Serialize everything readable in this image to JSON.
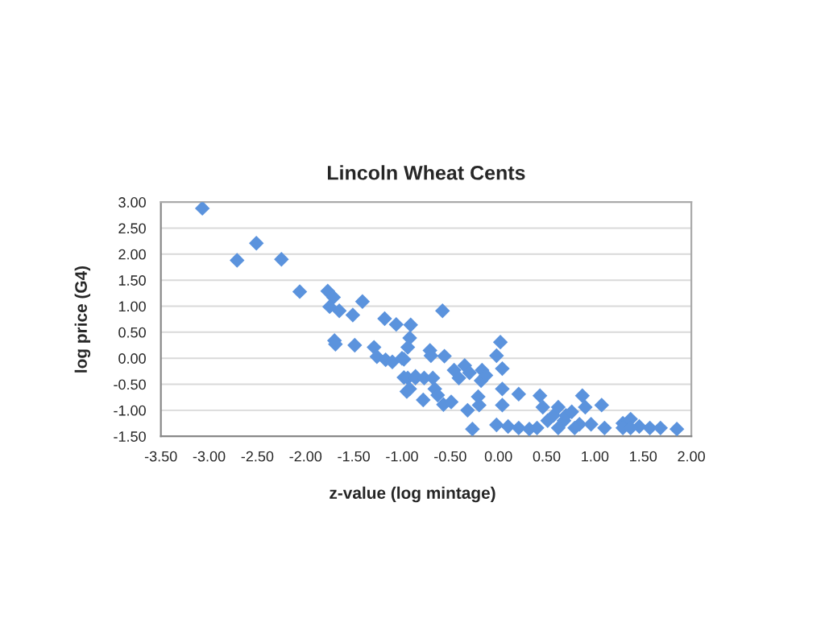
{
  "chart_data": {
    "type": "scatter",
    "title": "Lincoln Wheat Cents",
    "xlabel": "z-value (log mintage)",
    "ylabel": "log price (G4)",
    "x": [
      -3.07,
      -2.71,
      -2.51,
      -2.25,
      -2.06,
      -1.77,
      -1.71,
      -1.75,
      -1.65,
      -1.51,
      -1.41,
      -1.18,
      -1.06,
      -1.7,
      -1.69,
      -1.49,
      -1.29,
      -1.26,
      -1.17,
      -1.1,
      -0.98,
      -0.92,
      -0.94,
      -0.98,
      -0.95,
      -0.86,
      -0.91,
      -1.0,
      -0.94,
      -0.86,
      -0.77,
      -0.68,
      -0.78,
      -0.92,
      -0.71,
      -0.7,
      -0.58,
      -0.56,
      -0.66,
      -0.63,
      -0.57,
      -0.49,
      -0.46,
      -0.41,
      -0.35,
      -0.3,
      -0.27,
      -0.32,
      -0.21,
      -0.18,
      -0.17,
      -0.13,
      -0.2,
      -0.02,
      0.02,
      0.04,
      0.04,
      0.04,
      -0.02,
      0.1,
      0.21,
      0.21,
      0.32,
      0.43,
      0.46,
      0.51,
      0.57,
      0.62,
      0.68,
      0.7,
      0.76,
      0.84,
      0.87,
      0.9,
      0.96,
      1.07,
      1.1,
      1.29,
      1.37,
      1.46,
      1.57,
      1.68,
      1.85,
      0.4,
      0.62,
      0.79,
      1.29,
      1.37
    ],
    "values": [
      2.88,
      1.88,
      2.21,
      1.9,
      1.28,
      1.29,
      1.17,
      0.99,
      0.91,
      0.83,
      1.09,
      0.76,
      0.65,
      0.34,
      0.27,
      0.25,
      0.21,
      0.03,
      -0.03,
      -0.07,
      -0.02,
      0.39,
      0.21,
      -0.37,
      -0.64,
      -0.35,
      0.64,
      0.0,
      -0.38,
      -0.38,
      -0.38,
      -0.38,
      -0.8,
      -0.59,
      0.15,
      0.05,
      0.91,
      0.04,
      -0.59,
      -0.71,
      -0.89,
      -0.84,
      -0.23,
      -0.38,
      -0.14,
      -0.28,
      -1.36,
      -1.0,
      -0.74,
      -0.43,
      -0.23,
      -0.33,
      -0.9,
      0.05,
      0.31,
      -0.2,
      -0.59,
      -0.9,
      -1.28,
      -1.31,
      -1.34,
      -0.69,
      -1.36,
      -0.72,
      -0.94,
      -1.2,
      -1.1,
      -0.94,
      -1.2,
      -1.1,
      -1.03,
      -1.27,
      -0.72,
      -0.94,
      -1.27,
      -0.9,
      -1.34,
      -1.25,
      -1.17,
      -1.31,
      -1.34,
      -1.34,
      -1.36,
      -1.34,
      -1.34,
      -1.34,
      -1.34,
      -1.34
    ],
    "color": "#5b93dd",
    "marker": "diamond",
    "grid": "y",
    "xlim": [
      -3.5,
      2.0
    ],
    "ylim": [
      -1.5,
      3.0
    ],
    "xticks": [
      {
        "value": -3.5,
        "label": "-3.50"
      },
      {
        "value": -3.0,
        "label": "-3.00"
      },
      {
        "value": -2.5,
        "label": "-2.50"
      },
      {
        "value": -2.0,
        "label": "-2.00"
      },
      {
        "value": -1.5,
        "label": "-1.50"
      },
      {
        "value": -1.0,
        "label": "-1.00"
      },
      {
        "value": -0.5,
        "label": "-0.50"
      },
      {
        "value": 0.0,
        "label": "0.00"
      },
      {
        "value": 0.5,
        "label": "0.50"
      },
      {
        "value": 1.0,
        "label": "1.00"
      },
      {
        "value": 1.5,
        "label": "1.50"
      },
      {
        "value": 2.0,
        "label": "2.00"
      }
    ],
    "yticks": [
      {
        "value": -1.5,
        "label": "-1.50"
      },
      {
        "value": -1.0,
        "label": "-1.00"
      },
      {
        "value": -0.5,
        "label": "-0.50"
      },
      {
        "value": 0.0,
        "label": "0.00"
      },
      {
        "value": 0.5,
        "label": "0.50"
      },
      {
        "value": 1.0,
        "label": "1.00"
      },
      {
        "value": 1.5,
        "label": "1.50"
      },
      {
        "value": 2.0,
        "label": "2.00"
      },
      {
        "value": 2.5,
        "label": "2.50"
      },
      {
        "value": 3.0,
        "label": "3.00"
      }
    ]
  }
}
